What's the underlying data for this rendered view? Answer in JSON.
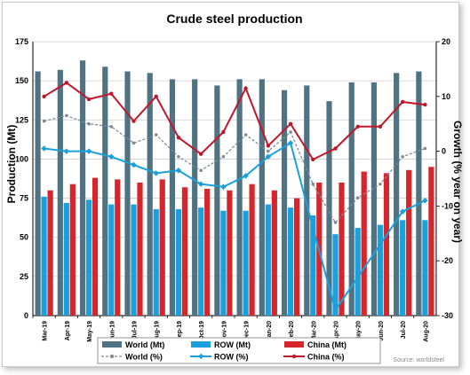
{
  "chart_data": {
    "type": "bar",
    "title": "Crude steel production",
    "ylabel": "Production (Mt)",
    "y2label": "Growth (% year on year)",
    "ylim": [
      0,
      175
    ],
    "y2lim": [
      -30,
      20
    ],
    "yticks": [
      "0",
      "25",
      "50",
      "75",
      "100",
      "125",
      "150",
      "175"
    ],
    "y2ticks": [
      "-30",
      "-20",
      "-10",
      "0",
      "10",
      "20"
    ],
    "categories": [
      "Mar-19",
      "Apr-19",
      "May-19",
      "Jun-19",
      "Jul-19",
      "Aug-19",
      "Sep-19",
      "Oct-19",
      "Nov-19",
      "Dec-19",
      "Jan-20",
      "Feb-20",
      "Mar-20",
      "Apr-20",
      "May-20",
      "Jun-20",
      "Jul-20",
      "Aug-20"
    ],
    "bar_series": [
      {
        "name": "World (Mt)",
        "color": "#4f7383",
        "values": [
          156,
          157,
          163,
          159,
          156,
          155,
          151,
          151,
          147,
          151,
          151,
          144,
          147,
          137,
          149,
          149,
          155,
          156
        ]
      },
      {
        "name": "ROW (Mt)",
        "color": "#1aa0dc",
        "values": [
          76,
          72,
          74,
          71,
          71,
          68,
          68,
          69,
          67,
          67,
          71,
          69,
          64,
          52,
          56,
          58,
          61,
          61
        ]
      },
      {
        "name": "China (Mt)",
        "color": "#d7262b",
        "values": [
          80,
          84,
          88,
          87,
          85,
          87,
          82,
          81,
          80,
          84,
          80,
          75,
          85,
          85,
          92,
          91,
          93,
          95
        ]
      }
    ],
    "line_series": [
      {
        "name": "World (%)",
        "color": "#7f8c95",
        "values": [
          5.5,
          6.5,
          5,
          4.5,
          1.5,
          3,
          -1,
          -3.5,
          -1,
          3,
          0,
          3.5,
          -6,
          -13,
          -8.5,
          -6,
          -1,
          0.5
        ]
      },
      {
        "name": "ROW (%)",
        "color": "#1aa0dc",
        "values": [
          0.5,
          0,
          0,
          -1,
          -2.5,
          -4,
          -3.5,
          -6,
          -6.5,
          -4.5,
          -1,
          1.5,
          -14,
          -29,
          -23,
          -17,
          -11,
          -9
        ]
      },
      {
        "name": "China (%)",
        "color": "#c0172a",
        "values": [
          10,
          12.5,
          9.5,
          10.5,
          5.5,
          10,
          2.5,
          -0.5,
          3.5,
          11.5,
          1,
          5,
          -1.5,
          0.5,
          4.5,
          4.5,
          9,
          8.5
        ]
      }
    ],
    "legend_position": "bottom",
    "source": "Source: worldsteel"
  }
}
